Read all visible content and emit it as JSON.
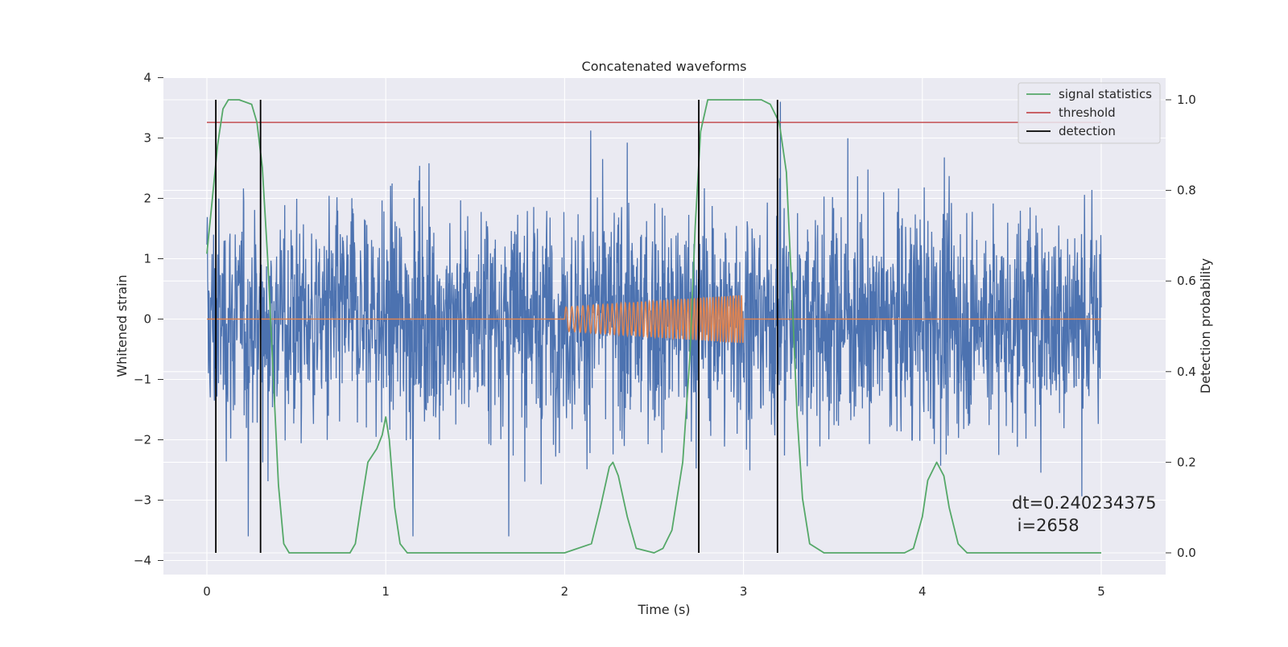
{
  "chart_data": {
    "type": "line",
    "title": "Concatenated waveforms",
    "xlabel": "Time (s)",
    "ylabel": "Whitened strain",
    "y2label": "Detection probability",
    "xlim": [
      -0.25,
      5.35
    ],
    "ylim": [
      -4.25,
      4
    ],
    "y2lim": [
      -0.05,
      1.05
    ],
    "xticks": [
      "0",
      "1",
      "2",
      "3",
      "4",
      "5"
    ],
    "yticks": [
      "4",
      "3",
      "2",
      "1",
      "0",
      "−1",
      "−2",
      "−3",
      "−4"
    ],
    "y2ticks": [
      "0.0",
      "0.2",
      "0.4",
      "0.6",
      "0.8",
      "1.0"
    ],
    "grid": true,
    "legend_position": "top-right",
    "legend": [
      "signal statistics",
      "threshold",
      "detection"
    ],
    "colors": {
      "strain": "#4c72b0",
      "injection": "#dd8452",
      "signal_statistics": "#55a868",
      "threshold": "#c44e52",
      "detection": "#000000",
      "plot_bg": "#eaeaf2",
      "grid": "#ffffff"
    },
    "series": [
      {
        "name": "signal statistics",
        "axis": "right",
        "x": [
          0,
          0.03,
          0.06,
          0.09,
          0.12,
          0.18,
          0.25,
          0.28,
          0.31,
          0.34,
          0.37,
          0.4,
          0.43,
          0.46,
          0.5,
          0.8,
          0.83,
          0.86,
          0.9,
          0.95,
          0.98,
          1.0,
          1.02,
          1.05,
          1.08,
          1.12,
          1.18,
          2.0,
          2.15,
          2.2,
          2.25,
          2.27,
          2.3,
          2.35,
          2.4,
          2.5,
          2.55,
          2.6,
          2.66,
          2.7,
          2.73,
          2.76,
          2.8,
          2.9,
          3.1,
          3.15,
          3.2,
          3.24,
          3.27,
          3.3,
          3.33,
          3.37,
          3.45,
          3.9,
          3.95,
          4.0,
          4.03,
          4.08,
          4.12,
          4.15,
          4.2,
          4.25,
          4.5,
          5.0
        ],
        "values": [
          0.66,
          0.78,
          0.9,
          0.98,
          1.0,
          1.0,
          0.99,
          0.95,
          0.85,
          0.65,
          0.4,
          0.15,
          0.02,
          0.0,
          0.0,
          0.0,
          0.02,
          0.1,
          0.2,
          0.23,
          0.26,
          0.3,
          0.25,
          0.1,
          0.02,
          0.0,
          0.0,
          0.0,
          0.02,
          0.1,
          0.19,
          0.2,
          0.17,
          0.08,
          0.01,
          0.0,
          0.01,
          0.05,
          0.2,
          0.43,
          0.72,
          0.93,
          1.0,
          1.0,
          1.0,
          0.99,
          0.95,
          0.84,
          0.58,
          0.3,
          0.12,
          0.02,
          0.0,
          0.0,
          0.01,
          0.08,
          0.16,
          0.2,
          0.17,
          0.1,
          0.02,
          0.0,
          0.0,
          0.0
        ]
      },
      {
        "name": "threshold",
        "axis": "right",
        "x": [
          0,
          5
        ],
        "values": [
          0.95,
          0.95
        ]
      },
      {
        "name": "detection",
        "axis": "right",
        "type": "vlines",
        "x": [
          0.05,
          0.3,
          2.75,
          3.19
        ],
        "ymin": 0.0,
        "ymax": 1.0
      },
      {
        "axis": "left",
        "type": "noise",
        "x_range": [
          0,
          5
        ],
        "typical_envelope": 1.2,
        "peak_abs": 3.6
      },
      {
        "axis": "left",
        "type": "chirp",
        "x_range": [
          2,
          3
        ],
        "amplitude_start": 0.2,
        "amplitude_end": 0.4
      }
    ],
    "annotation": {
      "line1": "dt=0.240234375",
      "line2": " i=2658"
    }
  }
}
